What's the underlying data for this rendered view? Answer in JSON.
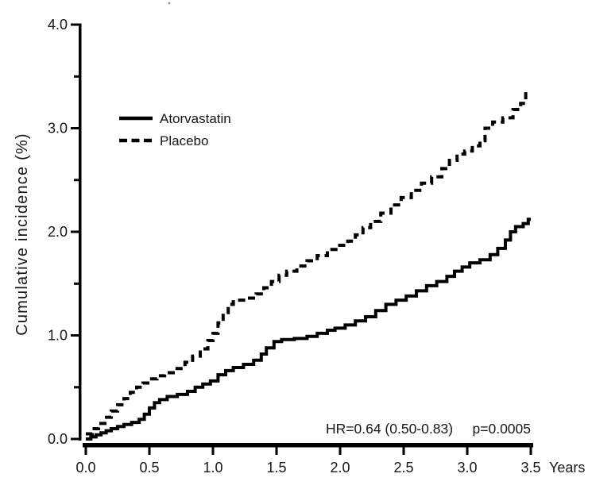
{
  "figure": {
    "kind": "survival-curve-figure",
    "background": "#ffffff",
    "line_color": "#000000",
    "text_color": "#161616"
  },
  "chart_data": {
    "type": "line",
    "line_style": "step-after",
    "title": "",
    "ylabel": "Cumulative incidence (%)",
    "xlabel": "Years",
    "xlim": [
      0,
      3.5
    ],
    "ylim": [
      0.0,
      4.0
    ],
    "x_ticks": [
      0.0,
      0.5,
      1.0,
      1.5,
      2.0,
      2.5,
      3.0,
      3.5
    ],
    "y_major_ticks": [
      0.0,
      1.0,
      2.0,
      3.0,
      4.0
    ],
    "y_minor_ticks": [
      0.5,
      1.5,
      2.5,
      3.5
    ],
    "grid": false,
    "legend_position": "upper-left-inside",
    "annotation_hr": "HR=0.64 (0.50-0.83)",
    "annotation_p": "p=0.0005",
    "series": [
      {
        "name": "Atorvastatin",
        "dash": "solid",
        "end_x": 3.5,
        "points": [
          [
            0.0,
            0.0
          ],
          [
            0.04,
            0.02
          ],
          [
            0.08,
            0.04
          ],
          [
            0.12,
            0.06
          ],
          [
            0.16,
            0.08
          ],
          [
            0.2,
            0.1
          ],
          [
            0.25,
            0.12
          ],
          [
            0.3,
            0.14
          ],
          [
            0.36,
            0.16
          ],
          [
            0.42,
            0.19
          ],
          [
            0.46,
            0.24
          ],
          [
            0.5,
            0.3
          ],
          [
            0.54,
            0.35
          ],
          [
            0.58,
            0.38
          ],
          [
            0.64,
            0.41
          ],
          [
            0.72,
            0.43
          ],
          [
            0.8,
            0.46
          ],
          [
            0.86,
            0.5
          ],
          [
            0.92,
            0.53
          ],
          [
            0.98,
            0.56
          ],
          [
            1.04,
            0.62
          ],
          [
            1.1,
            0.66
          ],
          [
            1.16,
            0.69
          ],
          [
            1.24,
            0.72
          ],
          [
            1.32,
            0.76
          ],
          [
            1.38,
            0.82
          ],
          [
            1.42,
            0.88
          ],
          [
            1.48,
            0.94
          ],
          [
            1.54,
            0.96
          ],
          [
            1.64,
            0.97
          ],
          [
            1.74,
            0.99
          ],
          [
            1.82,
            1.02
          ],
          [
            1.9,
            1.05
          ],
          [
            1.96,
            1.07
          ],
          [
            2.04,
            1.1
          ],
          [
            2.12,
            1.14
          ],
          [
            2.2,
            1.18
          ],
          [
            2.28,
            1.24
          ],
          [
            2.36,
            1.3
          ],
          [
            2.44,
            1.34
          ],
          [
            2.52,
            1.38
          ],
          [
            2.6,
            1.43
          ],
          [
            2.68,
            1.48
          ],
          [
            2.76,
            1.52
          ],
          [
            2.84,
            1.57
          ],
          [
            2.9,
            1.62
          ],
          [
            2.96,
            1.66
          ],
          [
            3.02,
            1.7
          ],
          [
            3.1,
            1.73
          ],
          [
            3.18,
            1.78
          ],
          [
            3.24,
            1.84
          ],
          [
            3.3,
            1.92
          ],
          [
            3.34,
            2.0
          ],
          [
            3.38,
            2.05
          ],
          [
            3.44,
            2.08
          ],
          [
            3.48,
            2.12
          ]
        ]
      },
      {
        "name": "Placebo",
        "dash": "dashed",
        "end_x": 3.46,
        "points": [
          [
            0.0,
            0.05
          ],
          [
            0.05,
            0.1
          ],
          [
            0.1,
            0.15
          ],
          [
            0.15,
            0.21
          ],
          [
            0.2,
            0.27
          ],
          [
            0.25,
            0.33
          ],
          [
            0.3,
            0.39
          ],
          [
            0.35,
            0.45
          ],
          [
            0.4,
            0.5
          ],
          [
            0.45,
            0.54
          ],
          [
            0.5,
            0.58
          ],
          [
            0.56,
            0.61
          ],
          [
            0.62,
            0.64
          ],
          [
            0.7,
            0.68
          ],
          [
            0.78,
            0.74
          ],
          [
            0.84,
            0.8
          ],
          [
            0.9,
            0.87
          ],
          [
            0.96,
            0.95
          ],
          [
            1.0,
            1.02
          ],
          [
            1.04,
            1.12
          ],
          [
            1.08,
            1.22
          ],
          [
            1.12,
            1.3
          ],
          [
            1.16,
            1.34
          ],
          [
            1.26,
            1.36
          ],
          [
            1.34,
            1.4
          ],
          [
            1.4,
            1.46
          ],
          [
            1.46,
            1.52
          ],
          [
            1.52,
            1.58
          ],
          [
            1.58,
            1.62
          ],
          [
            1.66,
            1.67
          ],
          [
            1.74,
            1.72
          ],
          [
            1.82,
            1.77
          ],
          [
            1.9,
            1.83
          ],
          [
            1.98,
            1.87
          ],
          [
            2.06,
            1.91
          ],
          [
            2.12,
            1.97
          ],
          [
            2.18,
            2.04
          ],
          [
            2.24,
            2.1
          ],
          [
            2.32,
            2.18
          ],
          [
            2.4,
            2.26
          ],
          [
            2.48,
            2.33
          ],
          [
            2.56,
            2.4
          ],
          [
            2.64,
            2.47
          ],
          [
            2.72,
            2.53
          ],
          [
            2.8,
            2.61
          ],
          [
            2.86,
            2.69
          ],
          [
            2.92,
            2.75
          ],
          [
            2.98,
            2.78
          ],
          [
            3.04,
            2.83
          ],
          [
            3.1,
            2.88
          ],
          [
            3.14,
            3.0
          ],
          [
            3.2,
            3.06
          ],
          [
            3.28,
            3.1
          ],
          [
            3.36,
            3.18
          ],
          [
            3.42,
            3.24
          ],
          [
            3.46,
            3.36
          ]
        ]
      }
    ]
  }
}
